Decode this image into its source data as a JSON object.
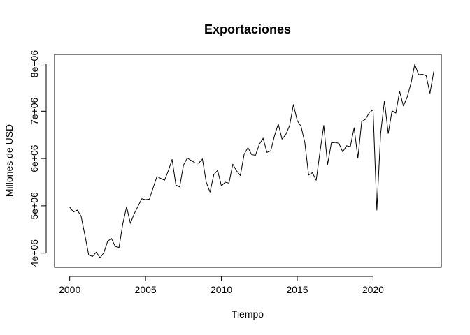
{
  "chart_data": {
    "type": "line",
    "title": "Exportaciones",
    "xlabel": "Tiempo",
    "ylabel": "Millones de USD",
    "xlim": [
      1999,
      2024.5
    ],
    "ylim": [
      3700000,
      8200000
    ],
    "x_ticks": [
      2000,
      2005,
      2010,
      2015,
      2020
    ],
    "x_tick_labels": [
      "2000",
      "2005",
      "2010",
      "2015",
      "2020"
    ],
    "y_ticks": [
      4000000,
      5000000,
      6000000,
      7000000,
      8000000
    ],
    "y_tick_labels": [
      "4e+06",
      "5e+06",
      "6e+06",
      "7e+06",
      "8e+06"
    ],
    "grid": false,
    "line_color": "#000000",
    "series": [
      {
        "x": [
          2000.0,
          2000.25,
          2000.5,
          2000.75,
          2001.0,
          2001.25,
          2001.5,
          2001.75,
          2002.0,
          2002.25,
          2002.5,
          2002.75,
          2003.0,
          2003.25,
          2003.5,
          2003.75,
          2004.0,
          2004.25,
          2004.5,
          2004.75,
          2005.0,
          2005.25,
          2005.5,
          2005.75,
          2006.0,
          2006.25,
          2006.5,
          2006.75,
          2007.0,
          2007.25,
          2007.5,
          2007.75,
          2008.0,
          2008.25,
          2008.5,
          2008.75,
          2009.0,
          2009.25,
          2009.5,
          2009.75,
          2010.0,
          2010.25,
          2010.5,
          2010.75,
          2011.0,
          2011.25,
          2011.5,
          2011.75,
          2012.0,
          2012.25,
          2012.5,
          2012.75,
          2013.0,
          2013.25,
          2013.5,
          2013.75,
          2014.0,
          2014.25,
          2014.5,
          2014.75,
          2015.0,
          2015.25,
          2015.5,
          2015.75,
          2016.0,
          2016.25,
          2016.5,
          2016.75,
          2017.0,
          2017.25,
          2017.5,
          2017.75,
          2018.0,
          2018.25,
          2018.5,
          2018.75,
          2019.0,
          2019.25,
          2019.5,
          2019.75,
          2020.0,
          2020.25,
          2020.5,
          2020.75,
          2021.0,
          2021.25,
          2021.5,
          2021.75,
          2022.0,
          2022.25,
          2022.5,
          2022.75,
          2023.0,
          2023.25,
          2023.5,
          2023.75,
          2024.0
        ],
        "y": [
          4970000,
          4870000,
          4910000,
          4780000,
          4380000,
          3960000,
          3930000,
          4020000,
          3900000,
          4010000,
          4250000,
          4310000,
          4140000,
          4120000,
          4620000,
          4980000,
          4630000,
          4830000,
          4990000,
          5150000,
          5130000,
          5140000,
          5380000,
          5620000,
          5580000,
          5540000,
          5740000,
          5980000,
          5440000,
          5400000,
          5860000,
          6010000,
          5960000,
          5910000,
          5900000,
          5990000,
          5500000,
          5290000,
          5660000,
          5750000,
          5420000,
          5500000,
          5480000,
          5880000,
          5740000,
          5640000,
          6090000,
          6230000,
          6080000,
          6070000,
          6300000,
          6430000,
          6130000,
          6160000,
          6480000,
          6730000,
          6410000,
          6510000,
          6700000,
          7140000,
          6800000,
          6680000,
          6340000,
          5650000,
          5700000,
          5540000,
          6140000,
          6700000,
          5870000,
          6330000,
          6340000,
          6320000,
          6140000,
          6270000,
          6250000,
          6650000,
          6010000,
          6780000,
          6830000,
          6970000,
          7030000,
          4910000,
          6530000,
          7220000,
          6530000,
          7010000,
          6960000,
          7420000,
          7110000,
          7300000,
          7590000,
          7990000,
          7770000,
          7780000,
          7750000,
          7380000,
          7840000
        ]
      }
    ]
  }
}
